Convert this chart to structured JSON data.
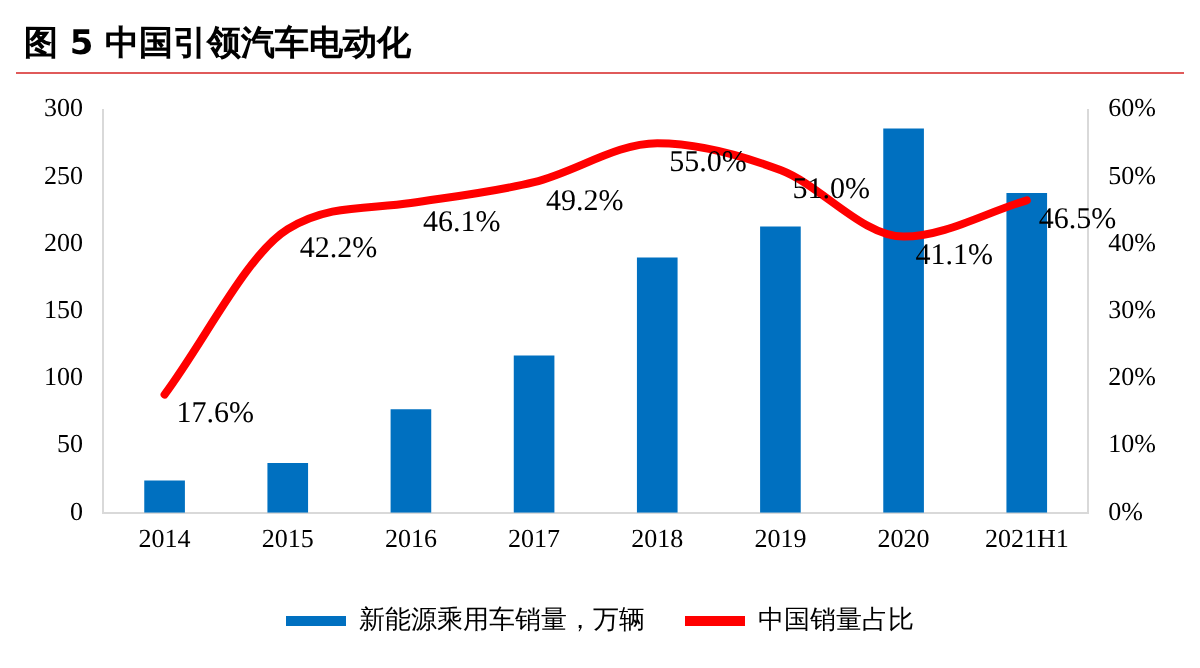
{
  "chart_data": {
    "type": "bar",
    "title": "图 5  中国引领汽车电动化",
    "categories": [
      "2014",
      "2015",
      "2016",
      "2017",
      "2018",
      "2019",
      "2020",
      "2021H1"
    ],
    "series": [
      {
        "name": "新能源乘用车销量，万辆",
        "color": "#0070c0",
        "values": [
          24,
          37,
          77,
          117,
          190,
          213,
          286,
          238
        ]
      },
      {
        "name": "中国销量占比",
        "type": "line",
        "axis": "y2",
        "color": "#ff0000",
        "values": [
          17.6,
          42.2,
          46.1,
          49.2,
          55.0,
          51.0,
          41.1,
          46.5
        ],
        "value_labels": [
          "17.6%",
          "42.2%",
          "46.1%",
          "49.2%",
          "55.0%",
          "51.0%",
          "41.1%",
          "46.5%"
        ]
      }
    ],
    "ylim": [
      0,
      300
    ],
    "yticks": [
      0,
      50,
      100,
      150,
      200,
      250,
      300
    ],
    "y2lim": [
      0,
      60
    ],
    "y2ticks": [
      {
        "value": 0,
        "label": "0%"
      },
      {
        "value": 10,
        "label": "10%"
      },
      {
        "value": 20,
        "label": "20%"
      },
      {
        "value": 30,
        "label": "30%"
      },
      {
        "value": 40,
        "label": "40%"
      },
      {
        "value": 50,
        "label": "50%"
      },
      {
        "value": 60,
        "label": "60%"
      }
    ],
    "grid": false,
    "legend": "bottom",
    "marker": "none",
    "line_style": "solid"
  }
}
